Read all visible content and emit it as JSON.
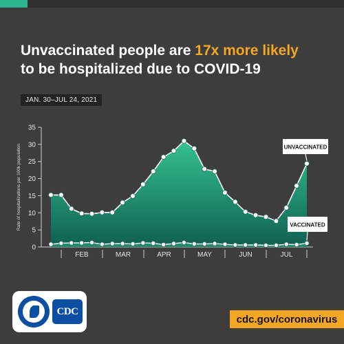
{
  "header": {
    "title_part1": "Unvaccinated people are ",
    "title_highlight": "17x more likely",
    "title_part2": "to be hospitalized due to COVID-19",
    "date_range": "JAN. 30–JUL 24, 2021"
  },
  "colors": {
    "background": "#3d3d3d",
    "accent_orange": "#f5a623",
    "area_green_top": "#35c28e",
    "area_green_bottom": "#0f5f52",
    "line_white": "#ffffff"
  },
  "chart_data": {
    "type": "area",
    "title": "",
    "ylabel": "Rate of hospitalizations per 100k population",
    "xlabel": "",
    "ylim": [
      0,
      35
    ],
    "yticks": [
      0,
      5,
      10,
      15,
      20,
      25,
      30,
      35
    ],
    "month_labels": [
      "FEB",
      "MAR",
      "APR",
      "MAY",
      "JUN",
      "JUL"
    ],
    "grid": false,
    "series": [
      {
        "name": "UNVACCINATED",
        "values": [
          15.2,
          15.2,
          11.2,
          9.8,
          9.7,
          10.1,
          10.1,
          13.0,
          14.9,
          18.3,
          22.1,
          26.3,
          28.1,
          31.0,
          28.8,
          22.8,
          22.1,
          15.9,
          13.2,
          10.3,
          9.3,
          8.8,
          7.6,
          11.5,
          17.9,
          24.4
        ]
      },
      {
        "name": "VACCINATED",
        "values": [
          0.8,
          1.1,
          1.2,
          1.2,
          1.3,
          0.8,
          1.0,
          1.0,
          0.9,
          1.2,
          1.1,
          0.7,
          1.0,
          1.3,
          0.9,
          0.9,
          1.0,
          0.8,
          0.6,
          0.6,
          0.6,
          0.5,
          0.5,
          0.8,
          0.7,
          1.1
        ]
      }
    ]
  },
  "footer": {
    "url": "cdc.gov/coronavirus",
    "logo_text": "CDC"
  }
}
